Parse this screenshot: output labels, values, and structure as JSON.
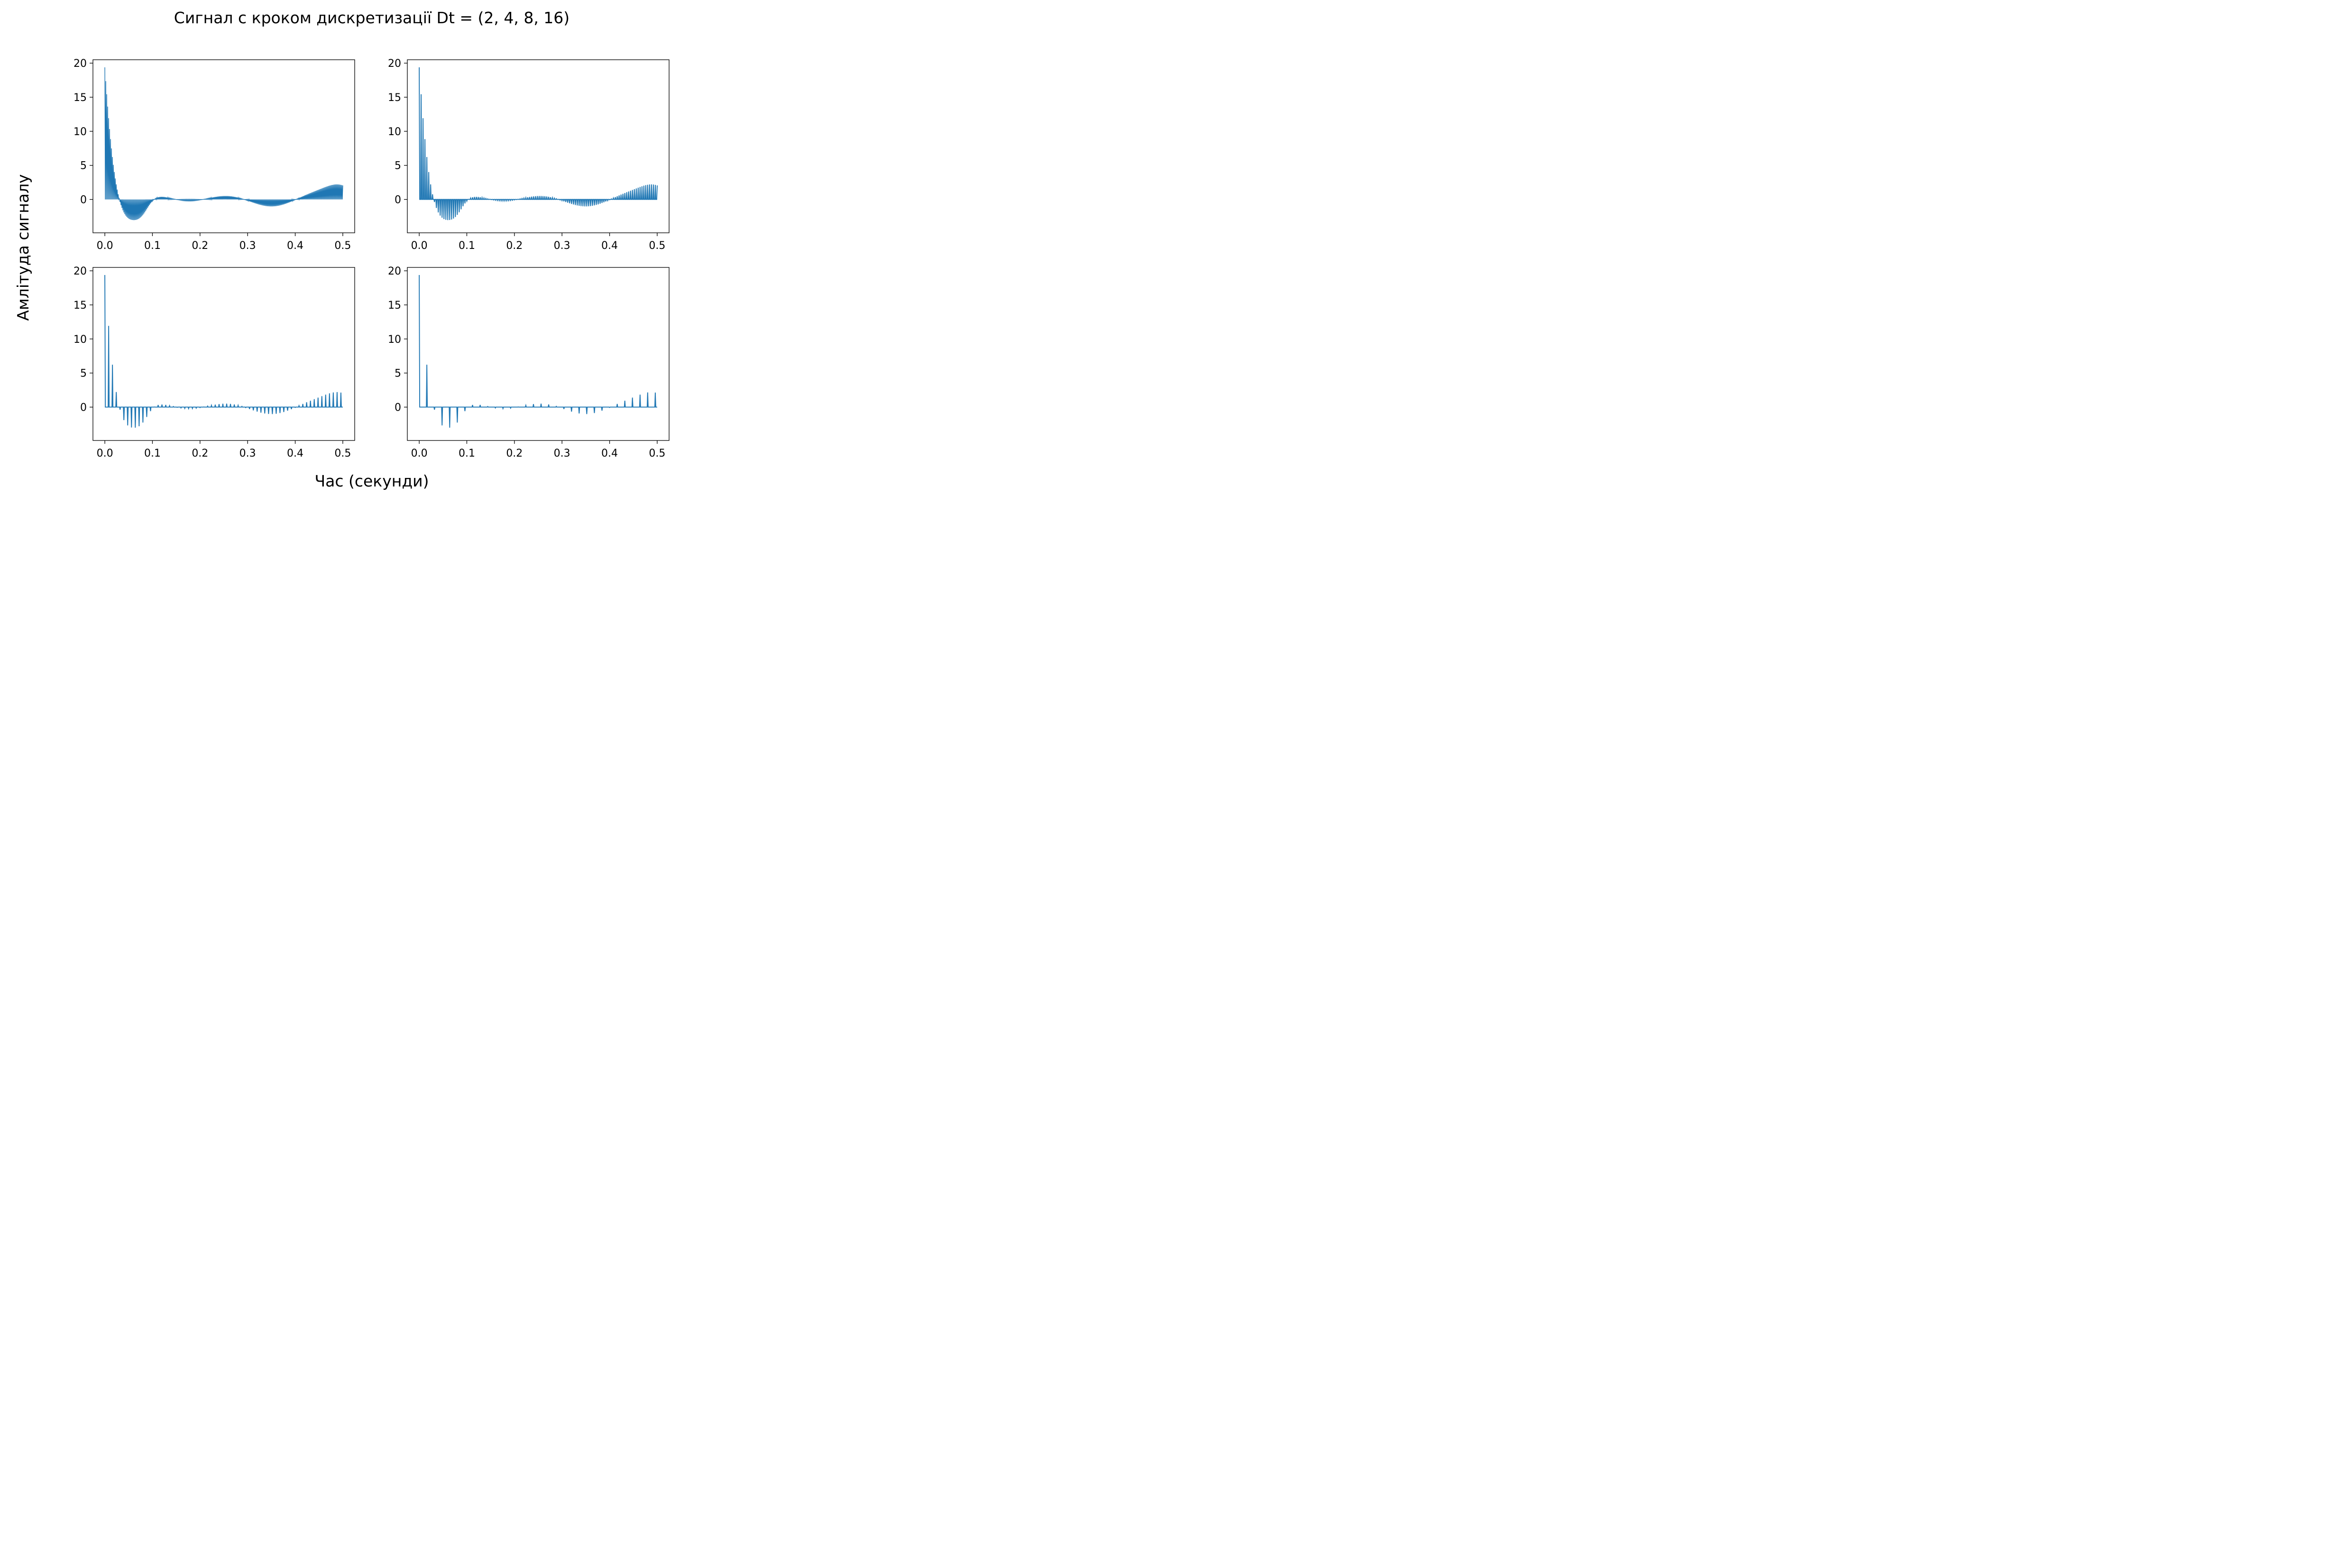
{
  "figure": {
    "suptitle": "Сигнал с кроком дискретизації Dt = (2, 4, 8, 16)",
    "supxlabel": "Час (секунди)",
    "supylabel": "Амлітуда сигналу"
  },
  "chart_data": [
    {
      "type": "line",
      "panel": "top-left",
      "dt": 2,
      "x_range": [
        0,
        0.5
      ],
      "xlim": [
        -0.025,
        0.525
      ],
      "ylim": [
        -4.9,
        20.5
      ],
      "xticks": [
        "0.0",
        "0.1",
        "0.2",
        "0.3",
        "0.4",
        "0.5"
      ],
      "yticks": [
        "0",
        "5",
        "10",
        "15",
        "20"
      ],
      "color": "#1f77b4"
    },
    {
      "type": "line",
      "panel": "top-right",
      "dt": 4,
      "x_range": [
        0,
        0.5
      ],
      "xlim": [
        -0.025,
        0.525
      ],
      "ylim": [
        -4.9,
        20.5
      ],
      "xticks": [
        "0.0",
        "0.1",
        "0.2",
        "0.3",
        "0.4",
        "0.5"
      ],
      "yticks": [
        "0",
        "5",
        "10",
        "15",
        "20"
      ],
      "color": "#1f77b4"
    },
    {
      "type": "line",
      "panel": "bottom-left",
      "dt": 8,
      "x_range": [
        0,
        0.5
      ],
      "xlim": [
        -0.025,
        0.525
      ],
      "ylim": [
        -4.9,
        20.5
      ],
      "xticks": [
        "0.0",
        "0.1",
        "0.2",
        "0.3",
        "0.4",
        "0.5"
      ],
      "yticks": [
        "0",
        "5",
        "10",
        "15",
        "20"
      ],
      "color": "#1f77b4"
    },
    {
      "type": "line",
      "panel": "bottom-right",
      "dt": 16,
      "x_range": [
        0,
        0.5
      ],
      "xlim": [
        -0.025,
        0.525
      ],
      "ylim": [
        -4.9,
        20.5
      ],
      "xticks": [
        "0.0",
        "0.1",
        "0.2",
        "0.3",
        "0.4",
        "0.5"
      ],
      "yticks": [
        "0",
        "5",
        "10",
        "15",
        "20"
      ],
      "color": "#1f77b4"
    }
  ]
}
